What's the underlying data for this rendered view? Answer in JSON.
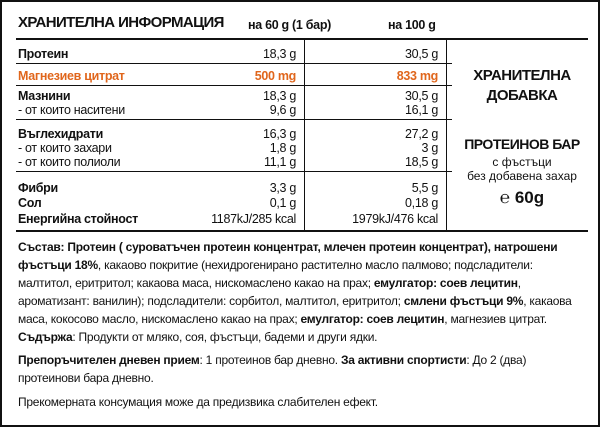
{
  "header": {
    "title": "ХРАНИТЕЛНА ИНФОРМАЦИЯ",
    "col1": "на 60 g (1 бар)",
    "col2": "на 100 g"
  },
  "table": {
    "rows": [
      {
        "label": "Протеин",
        "per60": "18,3 g",
        "per100": "30,5 g",
        "bold": true
      },
      {
        "label": "Магнезиев цитрат",
        "per60": "500 mg",
        "per100": "833 mg",
        "bold": true,
        "highlight": true
      },
      {
        "label": "Мазнини",
        "per60": "18,3 g",
        "per100": "30,5 g",
        "bold": true
      },
      {
        "label": "- от които наситени",
        "per60": "9,6 g",
        "per100": "16,1 g",
        "bold": false
      },
      {
        "label": "Въглехидрати",
        "per60": "16,3 g",
        "per100": "27,2 g",
        "bold": true
      },
      {
        "label": "- от които захари",
        "per60": "1,8 g",
        "per100": "3 g",
        "bold": false
      },
      {
        "label": "- от които полиоли",
        "per60": "11,1 g",
        "per100": "18,5 g",
        "bold": false
      },
      {
        "label": "Фибри",
        "per60": "3,3 g",
        "per100": "5,5 g",
        "bold": true
      },
      {
        "label": "Сол",
        "per60": "0,1 g",
        "per100": "0,18 g",
        "bold": true
      },
      {
        "label": "Енергийна стойност",
        "per60": "1187kJ/285 kcal",
        "per100": "1979kJ/476 kcal",
        "bold": true
      }
    ]
  },
  "side": {
    "category": "ХРАНИТЕЛНА ДОБАВКА",
    "product": "ПРОТЕИНОВ БАР",
    "details": [
      "с фъстъци",
      "без добавена захар"
    ],
    "weight": "℮ 60g"
  },
  "ingredients": {
    "segments": [
      {
        "text": "Състав: Протеин ( суроватъчен протеин концентрат, млечен протеин концентрат), натрошени фъстъци 18%",
        "bold": true
      },
      {
        "text": ", какаово покритие (нехидрогенирано растително масло палмово; подсладители: малтитол, еритритол; какаова маса, нискомаслено какао на прах; ",
        "bold": false
      },
      {
        "text": "емулгатор: соев лецитин",
        "bold": true
      },
      {
        "text": ", ароматизант: ванилин); подсладители: сорбитол, малтитол, еритритол; ",
        "bold": false
      },
      {
        "text": "смлени фъстъци 9%",
        "bold": true
      },
      {
        "text": ", какаова маса, кокосово масло, нискомаслено какао на прах; ",
        "bold": false
      },
      {
        "text": "емулгатор: соев лецитин",
        "bold": true
      },
      {
        "text": ", магнезиев цитрат. ",
        "bold": false
      },
      {
        "text": "Съдържа",
        "bold": true
      },
      {
        "text": ": Продукти от мляко, соя, фъстъци, бадеми и други ядки.",
        "bold": false
      }
    ]
  },
  "recommended": {
    "segments": [
      {
        "text": "Препоръчителен дневен прием",
        "bold": true
      },
      {
        "text": ": 1 протеинов бар дневно. ",
        "bold": false
      },
      {
        "text": "За активни спортисти",
        "bold": true
      },
      {
        "text": ": До 2 (два) протеинови бара дневно.",
        "bold": false
      }
    ]
  },
  "warning": "Прекомерната консумация може да предизвика слабителен ефект."
}
